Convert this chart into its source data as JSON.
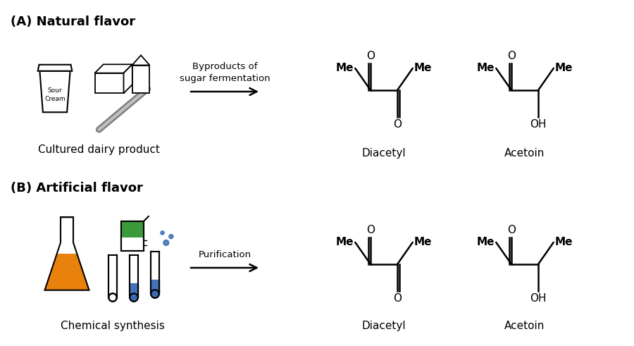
{
  "title_A": "(A) Natural flavor",
  "title_B": "(B) Artificial flavor",
  "label_A_source": "Cultured dairy product",
  "label_B_source": "Chemical synthesis",
  "arrow_text_A": "Byproducts of\nsugar fermentation",
  "arrow_text_B": "Purification",
  "label_diacetyl": "Diacetyl",
  "label_acetoin": "Acetoin",
  "bg_color": "#ffffff",
  "text_color": "#000000",
  "orange_color": "#E8820C",
  "green_color": "#3A9A3A",
  "blue_color": "#3B6BB5",
  "gray_color": "#808080",
  "title_fontsize": 13,
  "label_fontsize": 11,
  "chem_fontsize": 11
}
